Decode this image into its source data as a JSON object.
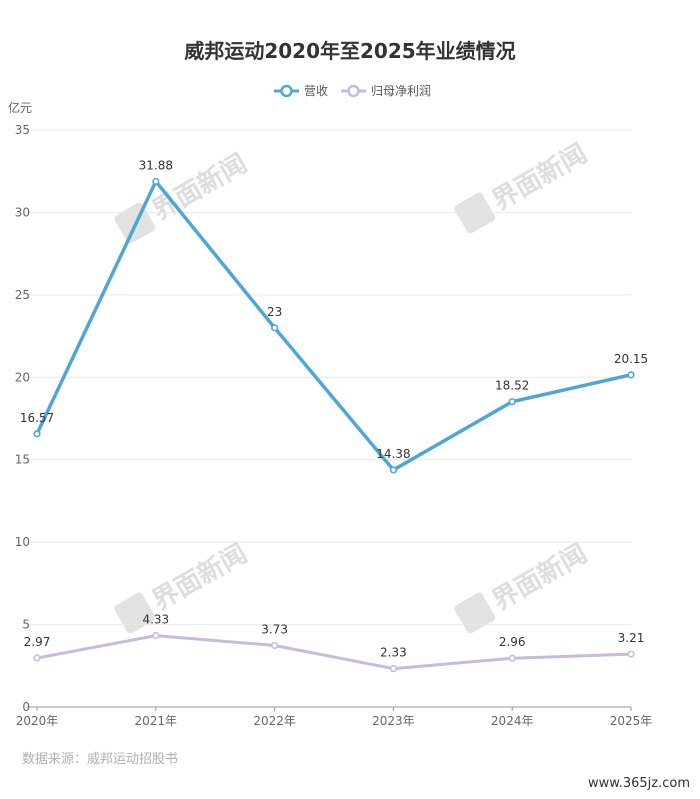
{
  "title": "威邦运动2020年至2025年业绩情况",
  "unit": "亿元",
  "source": "数据来源：威邦运动招股书",
  "site_watermark": "www.365jz.com",
  "brand_watermark": "界面新闻",
  "colors": {
    "revenue": "#4ea6d8",
    "profit": "#c9b9dc",
    "grid": "#e8e8e8",
    "axis": "#999999"
  },
  "chart_data": {
    "type": "line",
    "title": "威邦运动2020年至2025年业绩情况",
    "categories": [
      "2020年",
      "2021年",
      "2022年",
      "2023年",
      "2024年",
      "2025年"
    ],
    "ylabel": "亿元",
    "ylim": [
      0,
      35
    ],
    "yticks": [
      0,
      5,
      10,
      15,
      20,
      25,
      30,
      35
    ],
    "grid": true,
    "legend": "top-center",
    "series": [
      {
        "name": "营收",
        "values": [
          16.57,
          31.88,
          23,
          14.38,
          18.52,
          20.15
        ],
        "labels": [
          "16.57",
          "31.88",
          "23",
          "14.38",
          "18.52",
          "20.15"
        ]
      },
      {
        "name": "归母净利润",
        "values": [
          2.97,
          4.33,
          3.73,
          2.33,
          2.96,
          3.21
        ],
        "labels": [
          "2.97",
          "4.33",
          "3.73",
          "2.33",
          "2.96",
          "3.21"
        ]
      }
    ]
  }
}
